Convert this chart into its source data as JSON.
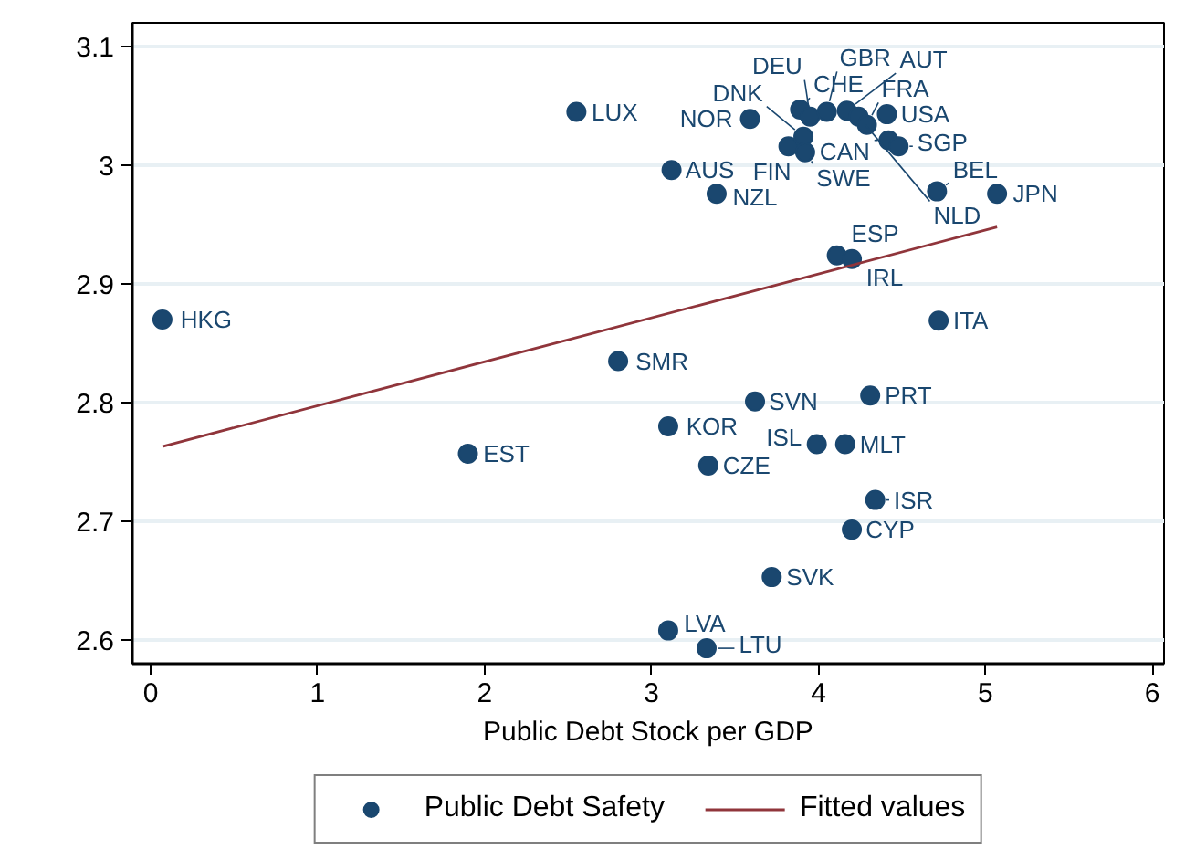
{
  "chart_data": {
    "type": "scatter",
    "xlabel": "Public Debt Stock per GDP",
    "xlim": [
      -0.11,
      6.07
    ],
    "ylim": [
      2.58,
      3.12
    ],
    "xticks": [
      0,
      1,
      2,
      3,
      4,
      5,
      6
    ],
    "yticks": [
      2.6,
      2.7,
      2.8,
      2.9,
      3,
      3.1
    ],
    "grid": "y",
    "legend": "bottom",
    "series": [
      {
        "name": "Public Debt Safety",
        "marker": "circle",
        "color": "#1a476f",
        "x": [
          0.07,
          1.9,
          2.55,
          2.8,
          3.1,
          3.1,
          3.12,
          3.33,
          3.34,
          3.39,
          3.59,
          3.62,
          3.72,
          3.82,
          3.91,
          3.92,
          3.89,
          3.95,
          3.99,
          4.11,
          4.16,
          4.2,
          4.2,
          4.05,
          4.17,
          4.24,
          4.29,
          4.41,
          4.31,
          4.34,
          4.42,
          4.48,
          4.71,
          4.72,
          5.07
        ],
        "values": [
          2.87,
          2.757,
          3.045,
          2.835,
          2.608,
          2.78,
          2.996,
          2.593,
          2.747,
          2.976,
          3.039,
          2.801,
          2.653,
          3.016,
          3.024,
          3.011,
          3.047,
          3.041,
          2.765,
          2.924,
          2.765,
          2.693,
          2.921,
          3.045,
          3.046,
          3.041,
          3.034,
          3.043,
          2.806,
          2.718,
          3.021,
          3.016,
          2.978,
          2.869,
          2.976
        ]
      },
      {
        "name": "Fitted values",
        "type": "line",
        "line_style": "solid",
        "color": "#90353b",
        "x": [
          0.07,
          5.07
        ],
        "values": [
          2.763,
          2.948
        ]
      }
    ],
    "annotations": [
      {
        "text": "HKG",
        "x": 0.07,
        "y": 2.87
      },
      {
        "text": "EST",
        "x": 1.9,
        "y": 2.757
      },
      {
        "text": "LUX",
        "x": 2.55,
        "y": 3.045
      },
      {
        "text": "SMR",
        "x": 2.8,
        "y": 2.835
      },
      {
        "text": "LVA",
        "x": 3.1,
        "y": 2.608
      },
      {
        "text": "KOR",
        "x": 3.1,
        "y": 2.78
      },
      {
        "text": "AUS",
        "x": 3.12,
        "y": 2.996
      },
      {
        "text": "LTU",
        "x": 3.33,
        "y": 2.593
      },
      {
        "text": "CZE",
        "x": 3.34,
        "y": 2.747
      },
      {
        "text": "NZL",
        "x": 3.39,
        "y": 2.976
      },
      {
        "text": "NOR",
        "x": 3.59,
        "y": 3.039
      },
      {
        "text": "SVN",
        "x": 3.62,
        "y": 2.801
      },
      {
        "text": "SVK",
        "x": 3.72,
        "y": 2.653
      },
      {
        "text": "FIN",
        "x": 3.82,
        "y": 3.016
      },
      {
        "text": "DNK",
        "x": 3.91,
        "y": 3.024
      },
      {
        "text": "SWE",
        "x": 3.92,
        "y": 3.011
      },
      {
        "text": "CHE",
        "x": 3.89,
        "y": 3.047
      },
      {
        "text": "DEU",
        "x": 3.95,
        "y": 3.041
      },
      {
        "text": "ISL",
        "x": 3.99,
        "y": 2.765
      },
      {
        "text": "ESP",
        "x": 4.11,
        "y": 2.924
      },
      {
        "text": "MLT",
        "x": 4.16,
        "y": 2.765
      },
      {
        "text": "CYP",
        "x": 4.2,
        "y": 2.693
      },
      {
        "text": "IRL",
        "x": 4.2,
        "y": 2.921
      },
      {
        "text": "GBR",
        "x": 4.05,
        "y": 3.045
      },
      {
        "text": "AUT",
        "x": 4.17,
        "y": 3.046
      },
      {
        "text": "NLD",
        "x": 4.24,
        "y": 3.041
      },
      {
        "text": "FRA",
        "x": 4.29,
        "y": 3.034
      },
      {
        "text": "USA",
        "x": 4.41,
        "y": 3.043
      },
      {
        "text": "PRT",
        "x": 4.31,
        "y": 2.806
      },
      {
        "text": "ISR",
        "x": 4.34,
        "y": 2.718
      },
      {
        "text": "CAN",
        "x": 4.42,
        "y": 3.021
      },
      {
        "text": "SGP",
        "x": 4.48,
        "y": 3.016
      },
      {
        "text": "BEL",
        "x": 4.71,
        "y": 2.978
      },
      {
        "text": "ITA",
        "x": 4.72,
        "y": 2.869
      },
      {
        "text": "JPN",
        "x": 5.07,
        "y": 2.976
      }
    ]
  }
}
